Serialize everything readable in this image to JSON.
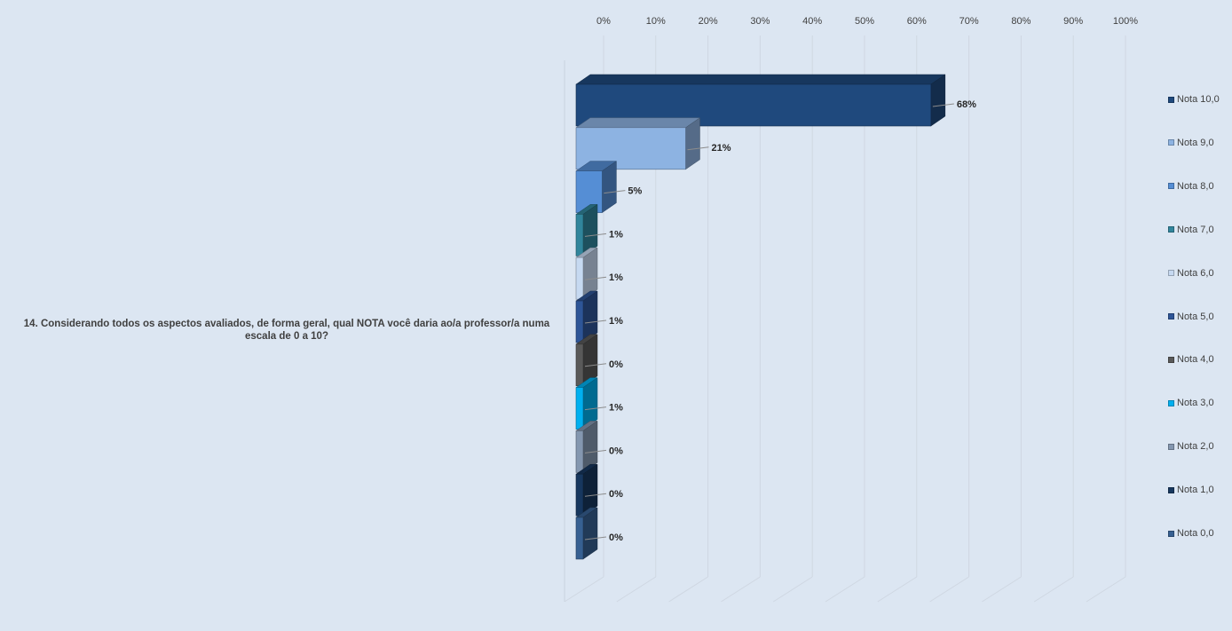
{
  "chart_data": {
    "type": "bar",
    "orientation": "horizontal",
    "style": "3d-clustered",
    "category": "14. Considerando todos os aspectos avaliados, de forma geral, qual NOTA você daria ao/a professor/a numa escala de 0 a 10?",
    "x_ticks": [
      "0%",
      "10%",
      "20%",
      "30%",
      "40%",
      "50%",
      "60%",
      "70%",
      "80%",
      "90%",
      "100%"
    ],
    "xlim": [
      0,
      100
    ],
    "grid": true,
    "legend_position": "right",
    "series": [
      {
        "name": "Nota 10,0",
        "value": 68,
        "label": "68%",
        "color": "#1f497d"
      },
      {
        "name": "Nota 9,0",
        "value": 21,
        "label": "21%",
        "color": "#8db3e2"
      },
      {
        "name": "Nota 8,0",
        "value": 5,
        "label": "5%",
        "color": "#558ed5"
      },
      {
        "name": "Nota 7,0",
        "value": 1,
        "label": "1%",
        "color": "#31859c"
      },
      {
        "name": "Nota 6,0",
        "value": 1,
        "label": "1%",
        "color": "#c6d9f1"
      },
      {
        "name": "Nota 5,0",
        "value": 1,
        "label": "1%",
        "color": "#2e5597"
      },
      {
        "name": "Nota 4,0",
        "value": 0,
        "label": "0%",
        "color": "#595959"
      },
      {
        "name": "Nota 3,0",
        "value": 1,
        "label": "1%",
        "color": "#00b0f0"
      },
      {
        "name": "Nota 2,0",
        "value": 0,
        "label": "0%",
        "color": "#8497b0"
      },
      {
        "name": "Nota 1,0",
        "value": 0,
        "label": "0%",
        "color": "#17375e"
      },
      {
        "name": "Nota 0,0",
        "value": 0,
        "label": "0%",
        "color": "#376092"
      }
    ]
  }
}
